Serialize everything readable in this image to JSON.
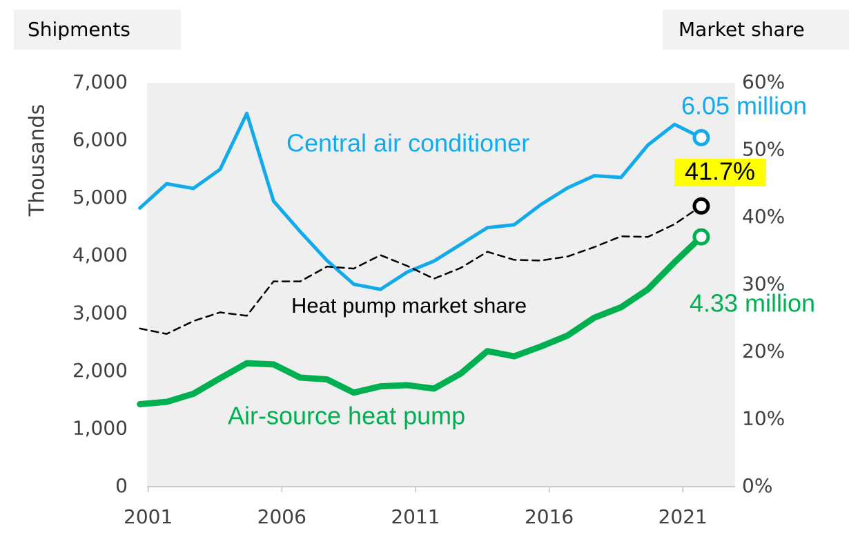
{
  "chart_data": {
    "type": "line",
    "y_label": "Shipments",
    "y2_label": "Market share",
    "y_unit_label": "Thousands",
    "x": [
      2001,
      2002,
      2003,
      2004,
      2005,
      2006,
      2007,
      2008,
      2009,
      2010,
      2011,
      2012,
      2013,
      2014,
      2015,
      2016,
      2017,
      2018,
      2019,
      2020,
      2021,
      2022
    ],
    "xlim": [
      2000.75,
      2022.75
    ],
    "xticks": [
      2001,
      2006,
      2011,
      2016,
      2021
    ],
    "ylim": [
      0,
      7000
    ],
    "yticks": [
      0,
      {
        "value": 1000,
        "label": "1,000"
      },
      {
        "value": 2000,
        "label": "2,000"
      },
      {
        "value": 3000,
        "label": "3,000"
      },
      {
        "value": 4000,
        "label": "4,000"
      },
      {
        "value": 5000,
        "label": "5,000"
      },
      {
        "value": 6000,
        "label": "6,000"
      },
      {
        "value": 7000,
        "label": "7,000"
      }
    ],
    "y2lim": [
      0,
      60
    ],
    "y2ticks": [
      {
        "value": 0,
        "label": "0%"
      },
      {
        "value": 10,
        "label": "10%"
      },
      {
        "value": 20,
        "label": "20%"
      },
      {
        "value": 30,
        "label": "30%"
      },
      {
        "value": 40,
        "label": "40%"
      },
      {
        "value": 50,
        "label": "50%"
      },
      {
        "value": 60,
        "label": "60%"
      }
    ],
    "series": [
      {
        "name": "Central air conditioner",
        "color": "#12aaeb",
        "width": 5,
        "values": [
          4830,
          5250,
          5170,
          5500,
          6470,
          4950,
          4420,
          3920,
          3510,
          3420,
          3720,
          3910,
          4200,
          4490,
          4540,
          4890,
          5180,
          5390,
          5360,
          5920,
          6280,
          6050
        ],
        "end_label": "6.05 million"
      },
      {
        "name": "Air-source heat pump",
        "color": "#00b050",
        "width": 9,
        "values": [
          1430,
          1470,
          1610,
          1880,
          2140,
          2120,
          1890,
          1860,
          1630,
          1740,
          1760,
          1700,
          1960,
          2350,
          2260,
          2430,
          2620,
          2930,
          3110,
          3420,
          3890,
          4330
        ],
        "end_label": "4.33 million"
      },
      {
        "name": "Heat pump market share",
        "color": "#000000",
        "width": 2.5,
        "dashed": true,
        "axis": "y2",
        "values": [
          23.5,
          22.7,
          24.6,
          25.9,
          25.4,
          30.5,
          30.5,
          32.7,
          32.4,
          34.4,
          32.8,
          30.9,
          32.5,
          34.9,
          33.7,
          33.6,
          34.2,
          35.6,
          37.2,
          37.1,
          39.0,
          41.7
        ],
        "end_label": "41.7%"
      }
    ]
  }
}
